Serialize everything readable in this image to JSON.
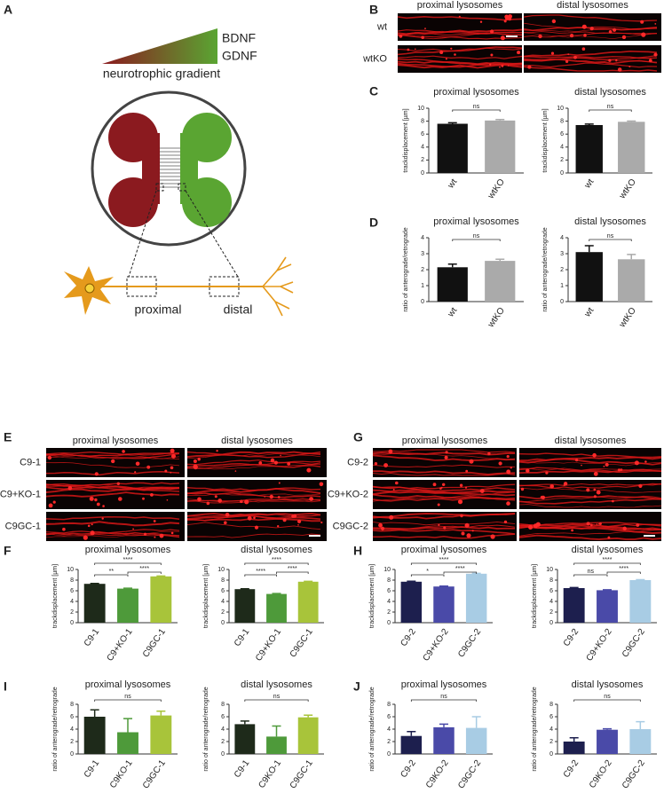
{
  "panel_labels": [
    "A",
    "B",
    "C",
    "D",
    "E",
    "F",
    "G",
    "H",
    "I",
    "J"
  ],
  "diagram": {
    "growth_factors": [
      "BDNF",
      "GDNF"
    ],
    "gradient_label": "neurotrophic gradient",
    "segments": [
      "proximal",
      "distal"
    ]
  },
  "image_panels": [
    {
      "columns": [
        "proximal lysosomes",
        "distal lysosomes"
      ],
      "rows": [
        "wt",
        "wtKO"
      ]
    },
    {
      "columns": [
        "proximal lysosomes",
        "distal lysosomes"
      ],
      "rows": [
        "C9-1",
        "C9+KO-1",
        "C9GC-1"
      ]
    },
    {
      "columns": [
        "proximal lysosomes",
        "distal lysosomes"
      ],
      "rows": [
        "C9-2",
        "C9+KO-2",
        "C9GC-2"
      ]
    }
  ],
  "chart_data": [
    {
      "type": "bar",
      "title": "proximal lysosomes",
      "ylabel": "trackdisplacement [µm]",
      "categories": [
        "wt",
        "wtKO"
      ],
      "values": [
        7.6,
        8.1
      ],
      "errors": [
        0.15,
        0.15
      ],
      "colors": [
        "#111111",
        "#aaaaaa"
      ],
      "ylim": [
        0,
        10
      ],
      "yticks": [
        0,
        2,
        4,
        6,
        8,
        10
      ],
      "significance": [
        "ns"
      ]
    },
    {
      "type": "bar",
      "title": "distal lysosomes",
      "ylabel": "trackdisplacement [µm]",
      "categories": [
        "wt",
        "wtKO"
      ],
      "values": [
        7.4,
        7.9
      ],
      "errors": [
        0.15,
        0.12
      ],
      "colors": [
        "#111111",
        "#aaaaaa"
      ],
      "ylim": [
        0,
        10
      ],
      "yticks": [
        0,
        2,
        4,
        6,
        8,
        10
      ],
      "significance": [
        "ns"
      ]
    },
    {
      "type": "bar",
      "title": "proximal lysosomes",
      "ylabel": "ratio of anterograde/retrograde",
      "categories": [
        "wt",
        "wtKO"
      ],
      "values": [
        2.15,
        2.55
      ],
      "errors": [
        0.2,
        0.1
      ],
      "colors": [
        "#111111",
        "#aaaaaa"
      ],
      "ylim": [
        0,
        4
      ],
      "yticks": [
        0,
        1,
        2,
        3,
        4
      ],
      "significance": [
        "ns"
      ]
    },
    {
      "type": "bar",
      "title": "distal lysosomes",
      "ylabel": "ratio of anterograde/retrograde",
      "categories": [
        "wt",
        "wtKO"
      ],
      "values": [
        3.1,
        2.65
      ],
      "errors": [
        0.4,
        0.3
      ],
      "colors": [
        "#111111",
        "#aaaaaa"
      ],
      "ylim": [
        0,
        4
      ],
      "yticks": [
        0,
        1,
        2,
        3,
        4
      ],
      "significance": [
        "ns"
      ]
    },
    {
      "type": "bar",
      "title": "proximal lysosomes",
      "ylabel": "trackdisplacement [µm]",
      "categories": [
        "C9-1",
        "C9+KO-1",
        "C9GC-1"
      ],
      "values": [
        7.3,
        6.4,
        8.7
      ],
      "errors": [
        0.08,
        0.08,
        0.08
      ],
      "colors": [
        "#1e2a1a",
        "#4e9a3a",
        "#a8c43a"
      ],
      "ylim": [
        0,
        10
      ],
      "yticks": [
        0,
        2,
        4,
        6,
        8,
        10
      ],
      "significance": [
        "****",
        "**",
        "****"
      ]
    },
    {
      "type": "bar",
      "title": "distal lysosomes",
      "ylabel": "trackdisplacement [µm]",
      "categories": [
        "C9-1",
        "C9+KO-1",
        "C9GC-1"
      ],
      "values": [
        6.3,
        5.4,
        7.7
      ],
      "errors": [
        0.08,
        0.08,
        0.08
      ],
      "colors": [
        "#1e2a1a",
        "#4e9a3a",
        "#a8c43a"
      ],
      "ylim": [
        0,
        10
      ],
      "yticks": [
        0,
        2,
        4,
        6,
        8,
        10
      ],
      "significance": [
        "****",
        "****",
        "****"
      ]
    },
    {
      "type": "bar",
      "title": "proximal lysosomes",
      "ylabel": "trackdisplacement [µm]",
      "categories": [
        "C9-2",
        "C9+KO-2",
        "C9GC-2"
      ],
      "values": [
        7.7,
        6.8,
        9.2
      ],
      "errors": [
        0.1,
        0.08,
        0.08
      ],
      "colors": [
        "#1d1f4e",
        "#4a4aa8",
        "#a8cce4"
      ],
      "ylim": [
        0,
        10
      ],
      "yticks": [
        0,
        2,
        4,
        6,
        8,
        10
      ],
      "significance": [
        "****",
        "*",
        "****"
      ]
    },
    {
      "type": "bar",
      "title": "distal lysosomes",
      "ylabel": "trackdisplacement [µm]",
      "categories": [
        "C9-2",
        "C9+KO-2",
        "C9GC-2"
      ],
      "values": [
        6.5,
        6.1,
        8.0
      ],
      "errors": [
        0.1,
        0.08,
        0.08
      ],
      "colors": [
        "#1d1f4e",
        "#4a4aa8",
        "#a8cce4"
      ],
      "ylim": [
        0,
        10
      ],
      "yticks": [
        0,
        2,
        4,
        6,
        8,
        10
      ],
      "significance": [
        "****",
        "ns",
        "****"
      ]
    },
    {
      "type": "bar",
      "title": "proximal lysosomes",
      "ylabel": "ratio of anterograde/retrograde",
      "categories": [
        "C9-1",
        "C9KO-1",
        "C9GC-1"
      ],
      "values": [
        6.0,
        3.5,
        6.2
      ],
      "errors": [
        1.1,
        2.2,
        0.7
      ],
      "colors": [
        "#1e2a1a",
        "#4e9a3a",
        "#a8c43a"
      ],
      "ylim": [
        0,
        8
      ],
      "yticks": [
        0,
        2,
        4,
        6,
        8
      ],
      "significance": [
        "ns"
      ]
    },
    {
      "type": "bar",
      "title": "distal lysosomes",
      "ylabel": "ratio of anterograde/retrograde",
      "categories": [
        "C9-1",
        "C9KO-1",
        "C9GC-1"
      ],
      "values": [
        4.8,
        2.8,
        5.9
      ],
      "errors": [
        0.5,
        1.7,
        0.35
      ],
      "colors": [
        "#1e2a1a",
        "#4e9a3a",
        "#a8c43a"
      ],
      "ylim": [
        0,
        8
      ],
      "yticks": [
        0,
        2,
        4,
        6,
        8
      ],
      "significance": [
        "ns"
      ]
    },
    {
      "type": "bar",
      "title": "proximal lysosomes",
      "ylabel": "ratio of anterograde/retrograde",
      "categories": [
        "C9-2",
        "C9KO-2",
        "C9GC-2"
      ],
      "values": [
        2.9,
        4.3,
        4.2
      ],
      "errors": [
        0.7,
        0.5,
        1.8
      ],
      "colors": [
        "#1d1f4e",
        "#4a4aa8",
        "#a8cce4"
      ],
      "ylim": [
        0,
        8
      ],
      "yticks": [
        0,
        2,
        4,
        6,
        8
      ],
      "significance": [
        "ns"
      ]
    },
    {
      "type": "bar",
      "title": "distal lysosomes",
      "ylabel": "ratio of anterograde/retrograde",
      "categories": [
        "C9-2",
        "C9KO-2",
        "C9GC-2"
      ],
      "values": [
        2.0,
        3.9,
        4.0
      ],
      "errors": [
        0.6,
        0.15,
        1.2
      ],
      "colors": [
        "#1d1f4e",
        "#4a4aa8",
        "#a8cce4"
      ],
      "ylim": [
        0,
        8
      ],
      "yticks": [
        0,
        2,
        4,
        6,
        8
      ],
      "significance": [
        "ns"
      ]
    }
  ]
}
